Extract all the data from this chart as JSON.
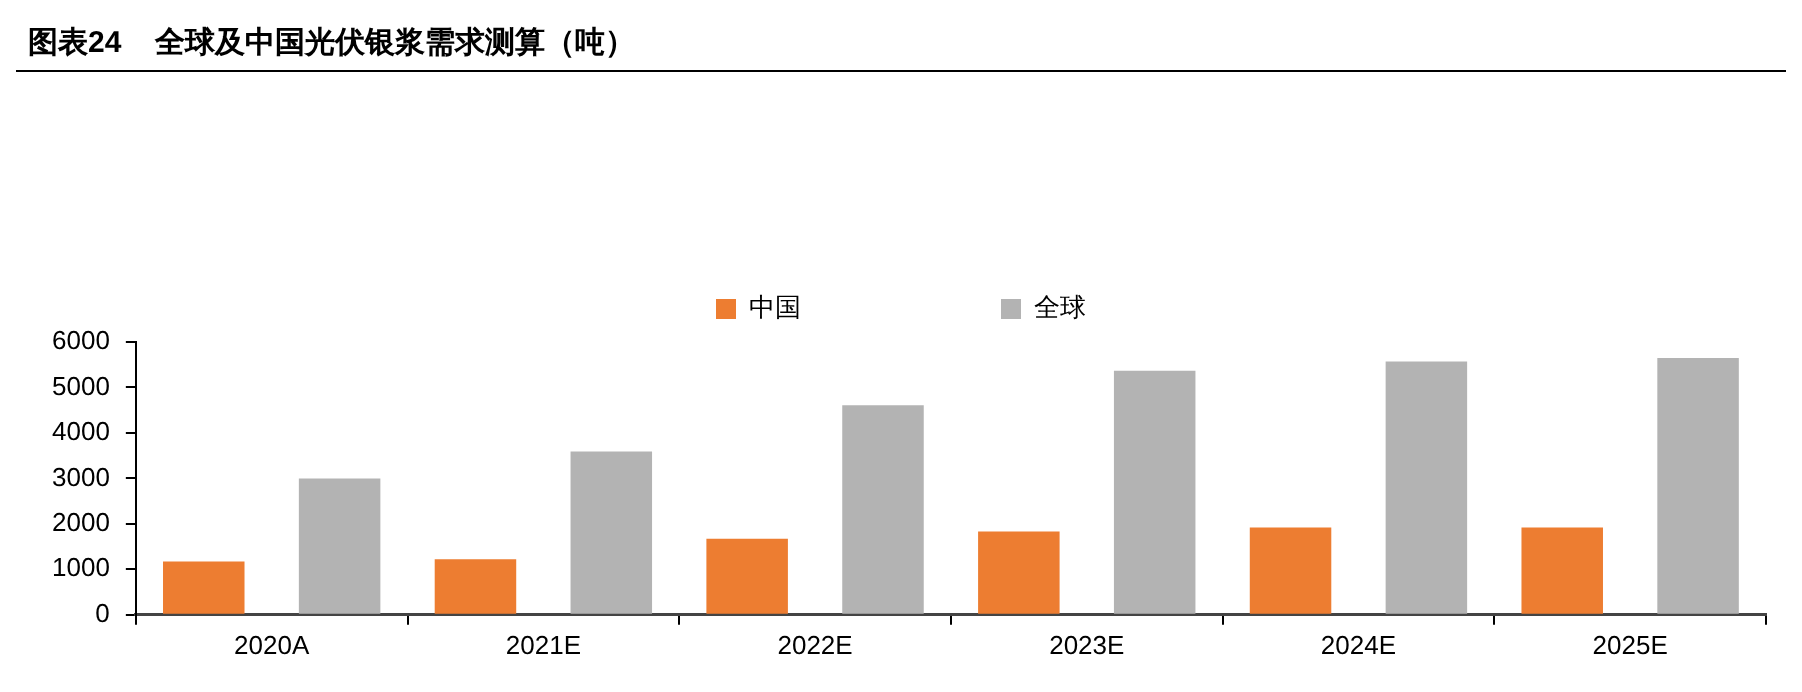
{
  "chart_data": {
    "type": "bar",
    "title": "图表24    全球及中国光伏银浆需求测算（吨）",
    "categories": [
      "2020A",
      "2021E",
      "2022E",
      "2023E",
      "2024E",
      "2025E"
    ],
    "series": [
      {
        "name": "中国",
        "color": "#ed7d31",
        "values": [
          1170,
          1220,
          1670,
          1830,
          1920,
          1920
        ]
      },
      {
        "name": "全球",
        "color": "#b3b3b3",
        "values": [
          3000,
          3590,
          4610,
          5370,
          5570,
          5650
        ]
      }
    ],
    "ylim": [
      0,
      6000
    ],
    "yticks": [
      0,
      1000,
      2000,
      3000,
      4000,
      5000,
      6000
    ],
    "grid": false,
    "legend": "top"
  }
}
